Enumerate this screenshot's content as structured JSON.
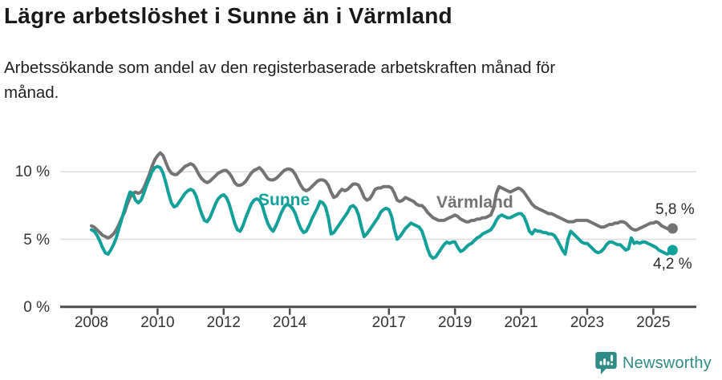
{
  "title": "Lägre arbetslöshet i Sunne än i Värmland",
  "subtitle_line1": "Arbetssökande som andel av den registerbaserade arbetskraften månad för",
  "subtitle_line2": "månad.",
  "colors": {
    "sunne": "#12a09a",
    "varmland": "#737373",
    "gridline": "#dcdcdc",
    "axis": "#4c4c4c",
    "tick_text": "#333333",
    "title_text": "#191919",
    "brand_teal": "#2e8b86"
  },
  "footer": {
    "brand": "Newsworthy"
  },
  "chart_data": {
    "type": "line",
    "title": "Lägre arbetslöshet i Sunne än i Värmland",
    "subtitle": "Arbetssökande som andel av den registerbaserade arbetskraften månad för månad.",
    "frequency": "monthly",
    "x_start": "2008-01",
    "x_end": "2025-08",
    "ylim": [
      0,
      12
    ],
    "grid": "horizontal",
    "legend_position": "inline-labels",
    "y_ticks": [
      {
        "value": 0,
        "label": "0 %"
      },
      {
        "value": 5,
        "label": "5 %"
      },
      {
        "value": 10,
        "label": "10 %"
      }
    ],
    "x_ticks": [
      {
        "year": 2008,
        "label": "2008"
      },
      {
        "year": 2010,
        "label": "2010"
      },
      {
        "year": 2012,
        "label": "2012"
      },
      {
        "year": 2014,
        "label": "2014"
      },
      {
        "year": 2017,
        "label": "2017"
      },
      {
        "year": 2019,
        "label": "2019"
      },
      {
        "year": 2021,
        "label": "2021"
      },
      {
        "year": 2023,
        "label": "2023"
      },
      {
        "year": 2025,
        "label": "2025"
      }
    ],
    "series": [
      {
        "name": "Värmland",
        "color": "#737373",
        "end_label": "5,8 %",
        "end_value": 5.8,
        "values": [
          6.0,
          5.9,
          5.7,
          5.5,
          5.3,
          5.2,
          5.1,
          5.2,
          5.4,
          5.7,
          6.1,
          6.6,
          7.0,
          7.6,
          8.1,
          8.4,
          8.5,
          8.4,
          8.5,
          8.8,
          9.3,
          9.8,
          10.4,
          10.9,
          11.2,
          11.4,
          11.2,
          10.7,
          10.2,
          9.9,
          9.8,
          9.8,
          10.0,
          10.2,
          10.4,
          10.5,
          10.6,
          10.5,
          10.2,
          9.8,
          9.5,
          9.3,
          9.2,
          9.3,
          9.5,
          9.7,
          9.9,
          10.0,
          10.1,
          10.1,
          9.9,
          9.6,
          9.2,
          9.0,
          9.0,
          9.1,
          9.3,
          9.6,
          9.9,
          10.1,
          10.2,
          10.3,
          10.1,
          9.8,
          9.5,
          9.4,
          9.4,
          9.5,
          9.7,
          9.9,
          10.1,
          10.2,
          10.2,
          10.1,
          9.8,
          9.4,
          9.0,
          8.7,
          8.6,
          8.7,
          8.9,
          9.1,
          9.3,
          9.4,
          9.4,
          9.3,
          9.0,
          8.5,
          8.1,
          8.2,
          8.5,
          8.7,
          8.6,
          8.7,
          8.9,
          9.1,
          9.1,
          9.0,
          8.6,
          8.1,
          7.9,
          8.0,
          8.3,
          8.7,
          8.8,
          8.8,
          8.9,
          8.9,
          8.9,
          8.8,
          8.4,
          7.9,
          7.8,
          7.9,
          8.1,
          8.0,
          7.9,
          7.8,
          7.6,
          7.5,
          7.5,
          7.3,
          7.0,
          6.8,
          6.6,
          6.5,
          6.4,
          6.4,
          6.4,
          6.5,
          6.6,
          6.7,
          6.8,
          6.7,
          6.5,
          6.4,
          6.3,
          6.3,
          6.4,
          6.4,
          6.5,
          6.5,
          6.6,
          6.6,
          6.7,
          6.8,
          7.3,
          8.4,
          8.9,
          8.8,
          8.7,
          8.6,
          8.5,
          8.6,
          8.7,
          8.8,
          8.7,
          8.5,
          8.2,
          7.9,
          7.6,
          7.4,
          7.3,
          7.2,
          7.1,
          7.0,
          6.9,
          6.9,
          6.8,
          6.7,
          6.6,
          6.5,
          6.4,
          6.3,
          6.3,
          6.3,
          6.4,
          6.4,
          6.4,
          6.4,
          6.4,
          6.3,
          6.2,
          6.1,
          6.0,
          5.9,
          5.9,
          6.0,
          6.1,
          6.1,
          6.2,
          6.2,
          6.3,
          6.3,
          6.2,
          6.0,
          5.8,
          5.7,
          5.7,
          5.8,
          5.9,
          6.0,
          6.1,
          6.2,
          6.2,
          6.3,
          6.2,
          6.0,
          5.9,
          5.8,
          5.7,
          5.8
        ]
      },
      {
        "name": "Sunne",
        "color": "#12a09a",
        "end_label": "4,2 %",
        "end_value": 4.2,
        "values": [
          5.7,
          5.6,
          5.3,
          4.9,
          4.4,
          4.0,
          3.9,
          4.2,
          4.6,
          5.1,
          5.8,
          6.5,
          7.2,
          7.9,
          8.5,
          8.4,
          7.9,
          7.7,
          7.9,
          8.4,
          9.0,
          9.5,
          10.0,
          10.3,
          10.4,
          10.3,
          9.9,
          9.2,
          8.4,
          7.7,
          7.4,
          7.5,
          7.8,
          8.1,
          8.4,
          8.6,
          8.7,
          8.6,
          8.2,
          7.5,
          6.9,
          6.4,
          6.3,
          6.6,
          7.1,
          7.6,
          8.0,
          8.2,
          8.3,
          8.1,
          7.6,
          6.9,
          6.2,
          5.7,
          5.6,
          6.0,
          6.6,
          7.1,
          7.6,
          7.9,
          8.0,
          7.9,
          7.5,
          6.8,
          6.2,
          5.8,
          5.6,
          6.0,
          6.5,
          7.0,
          7.4,
          7.6,
          7.5,
          7.3,
          6.9,
          6.3,
          5.8,
          5.5,
          5.6,
          6.0,
          6.5,
          6.9,
          7.3,
          7.8,
          7.7,
          7.4,
          6.6,
          5.4,
          5.5,
          5.8,
          6.1,
          6.4,
          6.7,
          7.0,
          7.4,
          7.5,
          7.3,
          6.8,
          5.9,
          5.2,
          5.4,
          5.7,
          6.0,
          6.3,
          6.6,
          7.0,
          7.2,
          7.3,
          7.2,
          6.7,
          5.7,
          5.0,
          5.2,
          5.5,
          5.8,
          6.0,
          6.2,
          6.1,
          6.0,
          5.9,
          5.6,
          5.0,
          4.3,
          3.8,
          3.6,
          3.7,
          4.0,
          4.3,
          4.6,
          4.8,
          4.7,
          4.8,
          4.8,
          4.4,
          4.1,
          4.2,
          4.4,
          4.6,
          4.7,
          4.9,
          5.1,
          5.2,
          5.4,
          5.5,
          5.6,
          5.7,
          6.0,
          6.4,
          6.7,
          6.8,
          6.7,
          6.6,
          6.6,
          6.7,
          6.8,
          6.9,
          6.9,
          6.7,
          6.2,
          5.6,
          5.4,
          5.7,
          5.6,
          5.6,
          5.5,
          5.5,
          5.4,
          5.4,
          5.3,
          5.0,
          4.6,
          4.2,
          3.9,
          5.0,
          5.6,
          5.4,
          5.2,
          5.0,
          4.8,
          4.7,
          4.7,
          4.5,
          4.3,
          4.1,
          4.0,
          4.1,
          4.3,
          4.6,
          4.8,
          4.8,
          4.7,
          4.6,
          4.6,
          4.4,
          4.2,
          4.3,
          5.1,
          4.7,
          4.8,
          4.7,
          4.8,
          4.8,
          4.7,
          4.6,
          4.5,
          4.4,
          4.2,
          4.1,
          4.0,
          3.9,
          4.0,
          4.2
        ]
      }
    ]
  }
}
